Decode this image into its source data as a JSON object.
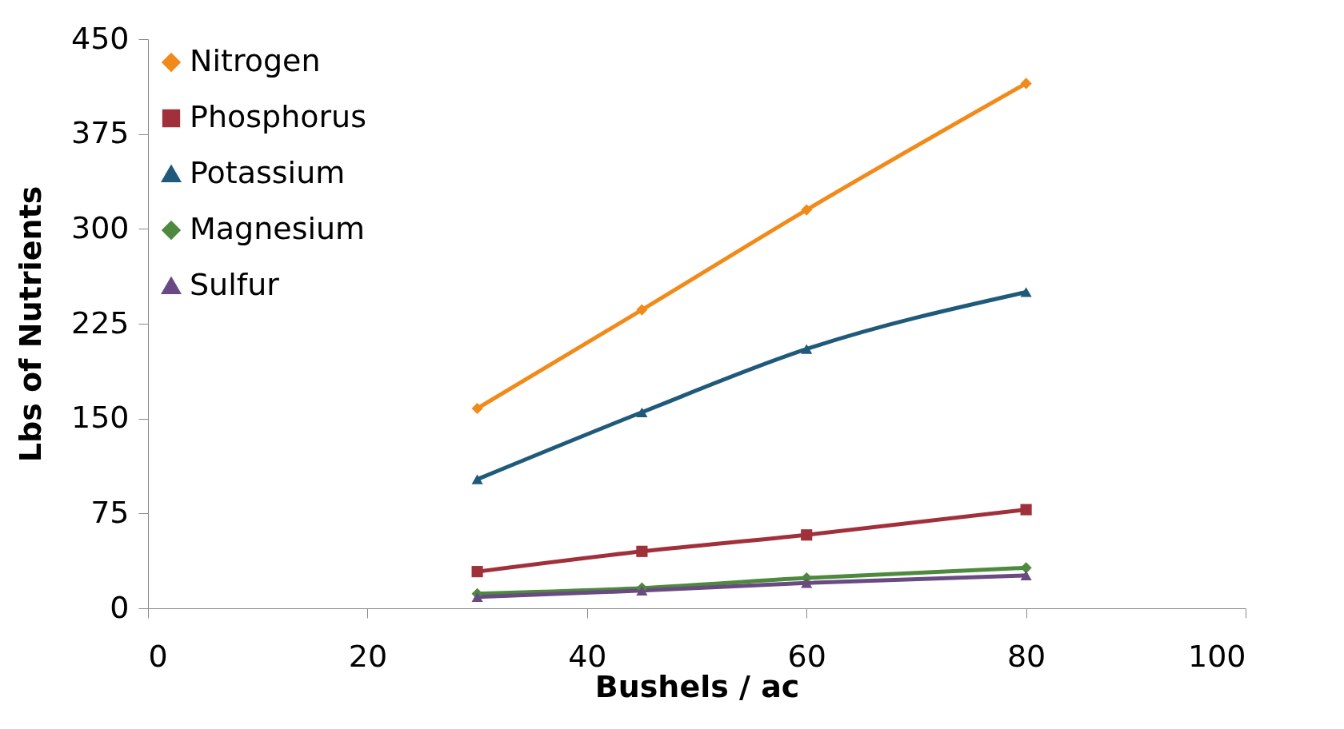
{
  "chart_data": {
    "type": "line",
    "xlabel": "Bushels / ac",
    "ylabel": "Lbs of Nutrients",
    "x": [
      30,
      45,
      60,
      80
    ],
    "series": [
      {
        "name": "Nitrogen",
        "color": "#f28a1a",
        "marker": "diamond",
        "values": [
          158,
          236,
          315,
          415
        ]
      },
      {
        "name": "Phosphorus",
        "color": "#a0303a",
        "marker": "square",
        "values": [
          29,
          45,
          58,
          78
        ]
      },
      {
        "name": "Potassium",
        "color": "#1f5a7a",
        "marker": "triangle",
        "values": [
          102,
          155,
          205,
          250
        ]
      },
      {
        "name": "Magnesium",
        "color": "#4e8a3e",
        "marker": "diamond",
        "values": [
          11.5,
          16,
          24,
          32
        ]
      },
      {
        "name": "Sulfur",
        "color": "#6a4a82",
        "marker": "triangle",
        "values": [
          9,
          14,
          20,
          26
        ]
      }
    ],
    "xlim": [
      0,
      100
    ],
    "xticks": [
      0,
      20,
      40,
      60,
      80,
      100
    ],
    "ylim": [
      0,
      450
    ],
    "yticks": [
      0,
      75,
      150,
      225,
      300,
      375,
      450
    ],
    "grid": false,
    "legend": "top left",
    "line_style": "solid"
  }
}
